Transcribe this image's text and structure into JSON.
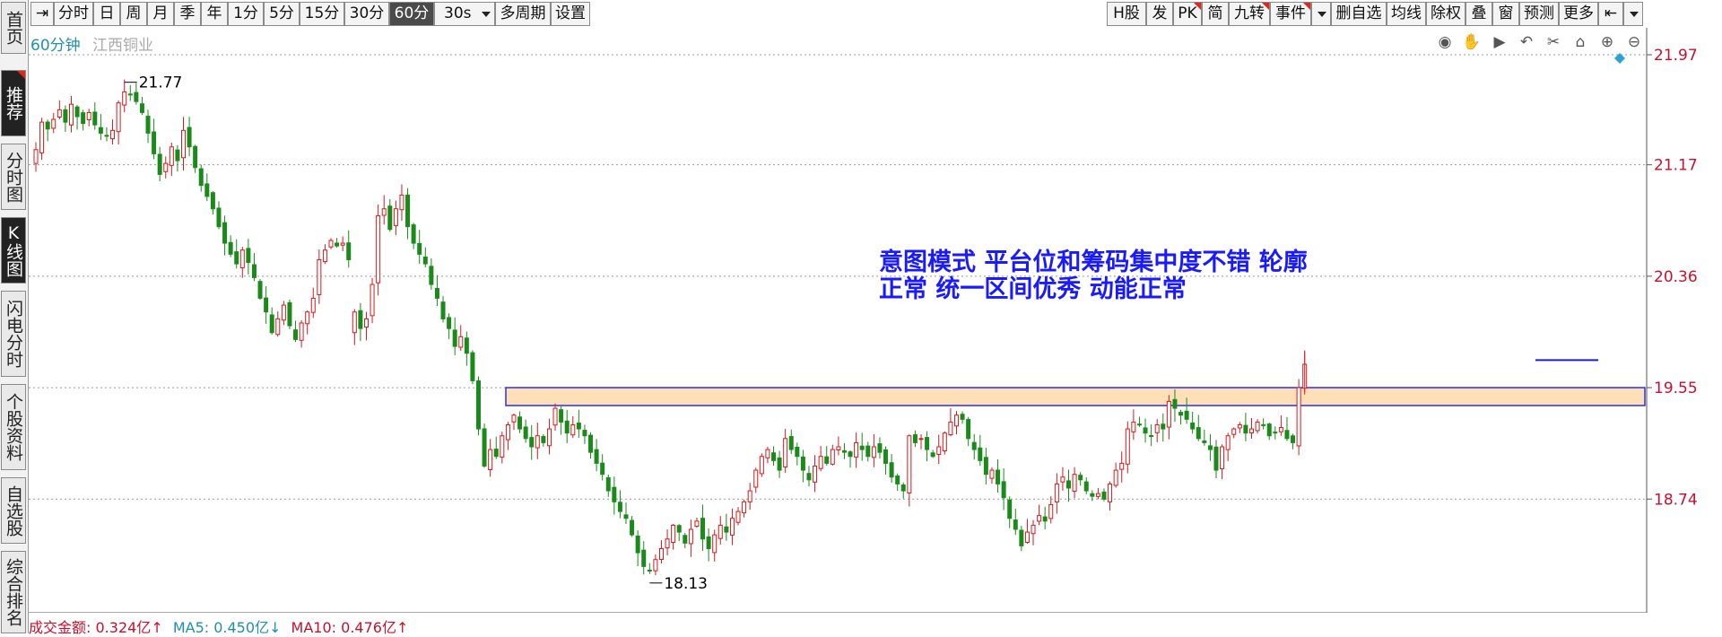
{
  "left_tabs": [
    {
      "label": "首页",
      "active": false,
      "mark": false
    },
    {
      "label": "推荐",
      "active": true,
      "mark": true
    },
    {
      "label": "分时图",
      "active": false,
      "mark": false
    },
    {
      "label": "K线图",
      "active": true,
      "mark": false
    },
    {
      "label": "闪电分时",
      "active": false,
      "mark": false
    },
    {
      "label": "个股资料",
      "active": false,
      "mark": false
    },
    {
      "label": "自选股",
      "active": false,
      "mark": false
    },
    {
      "label": "综合排名",
      "active": false,
      "mark": false
    }
  ],
  "toolbar": {
    "left_items": [
      {
        "label": "分时"
      },
      {
        "label": "日"
      },
      {
        "label": "周"
      },
      {
        "label": "月"
      },
      {
        "label": "季"
      },
      {
        "label": "年"
      },
      {
        "label": "1分"
      },
      {
        "label": "5分"
      },
      {
        "label": "15分"
      },
      {
        "label": "30分"
      },
      {
        "label": "60分",
        "active": true
      },
      {
        "label": "30s",
        "dropdown": true
      },
      {
        "label": "多周期"
      },
      {
        "label": "设置"
      }
    ],
    "right_items": [
      {
        "label": "H股"
      },
      {
        "label": "发"
      },
      {
        "label": "PK",
        "mark": true
      },
      {
        "label": "简"
      },
      {
        "label": "九转",
        "mark": true
      },
      {
        "label": "事件",
        "mark": true
      },
      {
        "label": "删自选"
      },
      {
        "label": "均线"
      },
      {
        "label": "除权"
      },
      {
        "label": "叠"
      },
      {
        "label": "窗"
      },
      {
        "label": "预测"
      },
      {
        "label": "更多"
      }
    ]
  },
  "stock": {
    "period": "60分钟",
    "name": "江西铜业"
  },
  "colors": {
    "up": "#d7191c",
    "down": "#1a8a1a",
    "axis_label": "#c8102e",
    "annotation": "#1a1aff",
    "zone_fill": "#fde0b8",
    "zone_border": "#2f2fdd"
  },
  "chart_tools": [
    "eye-icon",
    "hand-icon",
    "play-icon",
    "undo-icon",
    "scissors-icon",
    "lock-icon",
    "zoom-in-icon",
    "zoom-out-icon"
  ],
  "annotation_text": "意图模式  平台位和筹码集中度不错  轮廓正常  统一区间优秀  动能正常",
  "high_label": "21.77",
  "low_label": "18.13",
  "bottom": {
    "amount_label": "成交金额:",
    "amount_value": "0.324亿",
    "ma5_label": "MA5:",
    "ma5_value": "0.450亿",
    "ma10_label": "MA10:",
    "ma10_value": "0.476亿"
  },
  "chart_data": {
    "type": "candlestick",
    "title": "",
    "y_ticks": [
      21.97,
      21.17,
      20.36,
      19.55,
      18.74
    ],
    "ylim": [
      18.0,
      22.3
    ],
    "zone": [
      19.42,
      19.55
    ],
    "closes": [
      21.28,
      21.48,
      21.43,
      21.5,
      21.57,
      21.48,
      21.61,
      21.52,
      21.47,
      21.55,
      21.46,
      21.4,
      21.38,
      21.42,
      21.62,
      21.7,
      21.68,
      21.63,
      21.55,
      21.4,
      21.25,
      21.1,
      21.18,
      21.3,
      21.2,
      21.42,
      21.3,
      21.15,
      21.02,
      20.94,
      20.85,
      20.72,
      20.6,
      20.52,
      20.45,
      20.55,
      20.46,
      20.35,
      20.2,
      20.1,
      19.95,
      20.05,
      20.15,
      20.0,
      19.9,
      20.02,
      20.1,
      20.2,
      20.48,
      20.55,
      20.62,
      20.58,
      20.6,
      20.48,
      20.1,
      19.98,
      20.05,
      20.3,
      20.8,
      20.85,
      20.7,
      20.85,
      20.95,
      20.72,
      20.6,
      20.52,
      20.45,
      20.3,
      20.2,
      20.05,
      19.98,
      19.85,
      19.92,
      19.8,
      19.6,
      19.25,
      18.98,
      19.1,
      19.05,
      19.2,
      19.28,
      19.35,
      19.25,
      19.18,
      19.12,
      19.2,
      19.15,
      19.25,
      19.4,
      19.3,
      19.22,
      19.28,
      19.25,
      19.2,
      19.08,
      19.0,
      18.92,
      18.8,
      18.72,
      18.65,
      18.6,
      18.48,
      18.35,
      18.25,
      18.22,
      18.3,
      18.38,
      18.45,
      18.55,
      18.5,
      18.42,
      18.52,
      18.58,
      18.45,
      18.38,
      18.48,
      18.55,
      18.5,
      18.6,
      18.65,
      18.72,
      18.8,
      18.95,
      19.05,
      19.1,
      19.02,
      18.95,
      19.18,
      19.1,
      19.05,
      18.95,
      18.88,
      18.98,
      19.05,
      19.0,
      19.1,
      19.12,
      19.08,
      19.05,
      19.15,
      19.1,
      19.05,
      19.12,
      19.08,
      19.0,
      18.9,
      18.85,
      18.8,
      19.2,
      19.15,
      19.18,
      19.1,
      19.05,
      19.12,
      19.22,
      19.3,
      19.35,
      19.32,
      19.18,
      19.1,
      19.02,
      18.92,
      18.95,
      18.85,
      18.75,
      18.6,
      18.52,
      18.4,
      18.5,
      18.55,
      18.62,
      18.58,
      18.7,
      18.85,
      18.9,
      18.82,
      18.92,
      18.88,
      18.8,
      18.76,
      18.78,
      18.74,
      18.85,
      18.95,
      19.0,
      19.25,
      19.3,
      19.28,
      19.22,
      19.2,
      19.28,
      19.25,
      19.45,
      19.4,
      19.35,
      19.32,
      19.25,
      19.18,
      19.15,
      19.1,
      18.95,
      19.12,
      19.2,
      19.25,
      19.28,
      19.22,
      19.25,
      19.3,
      19.28,
      19.2,
      19.22,
      19.26,
      19.18,
      19.15,
      19.55,
      19.72
    ]
  }
}
